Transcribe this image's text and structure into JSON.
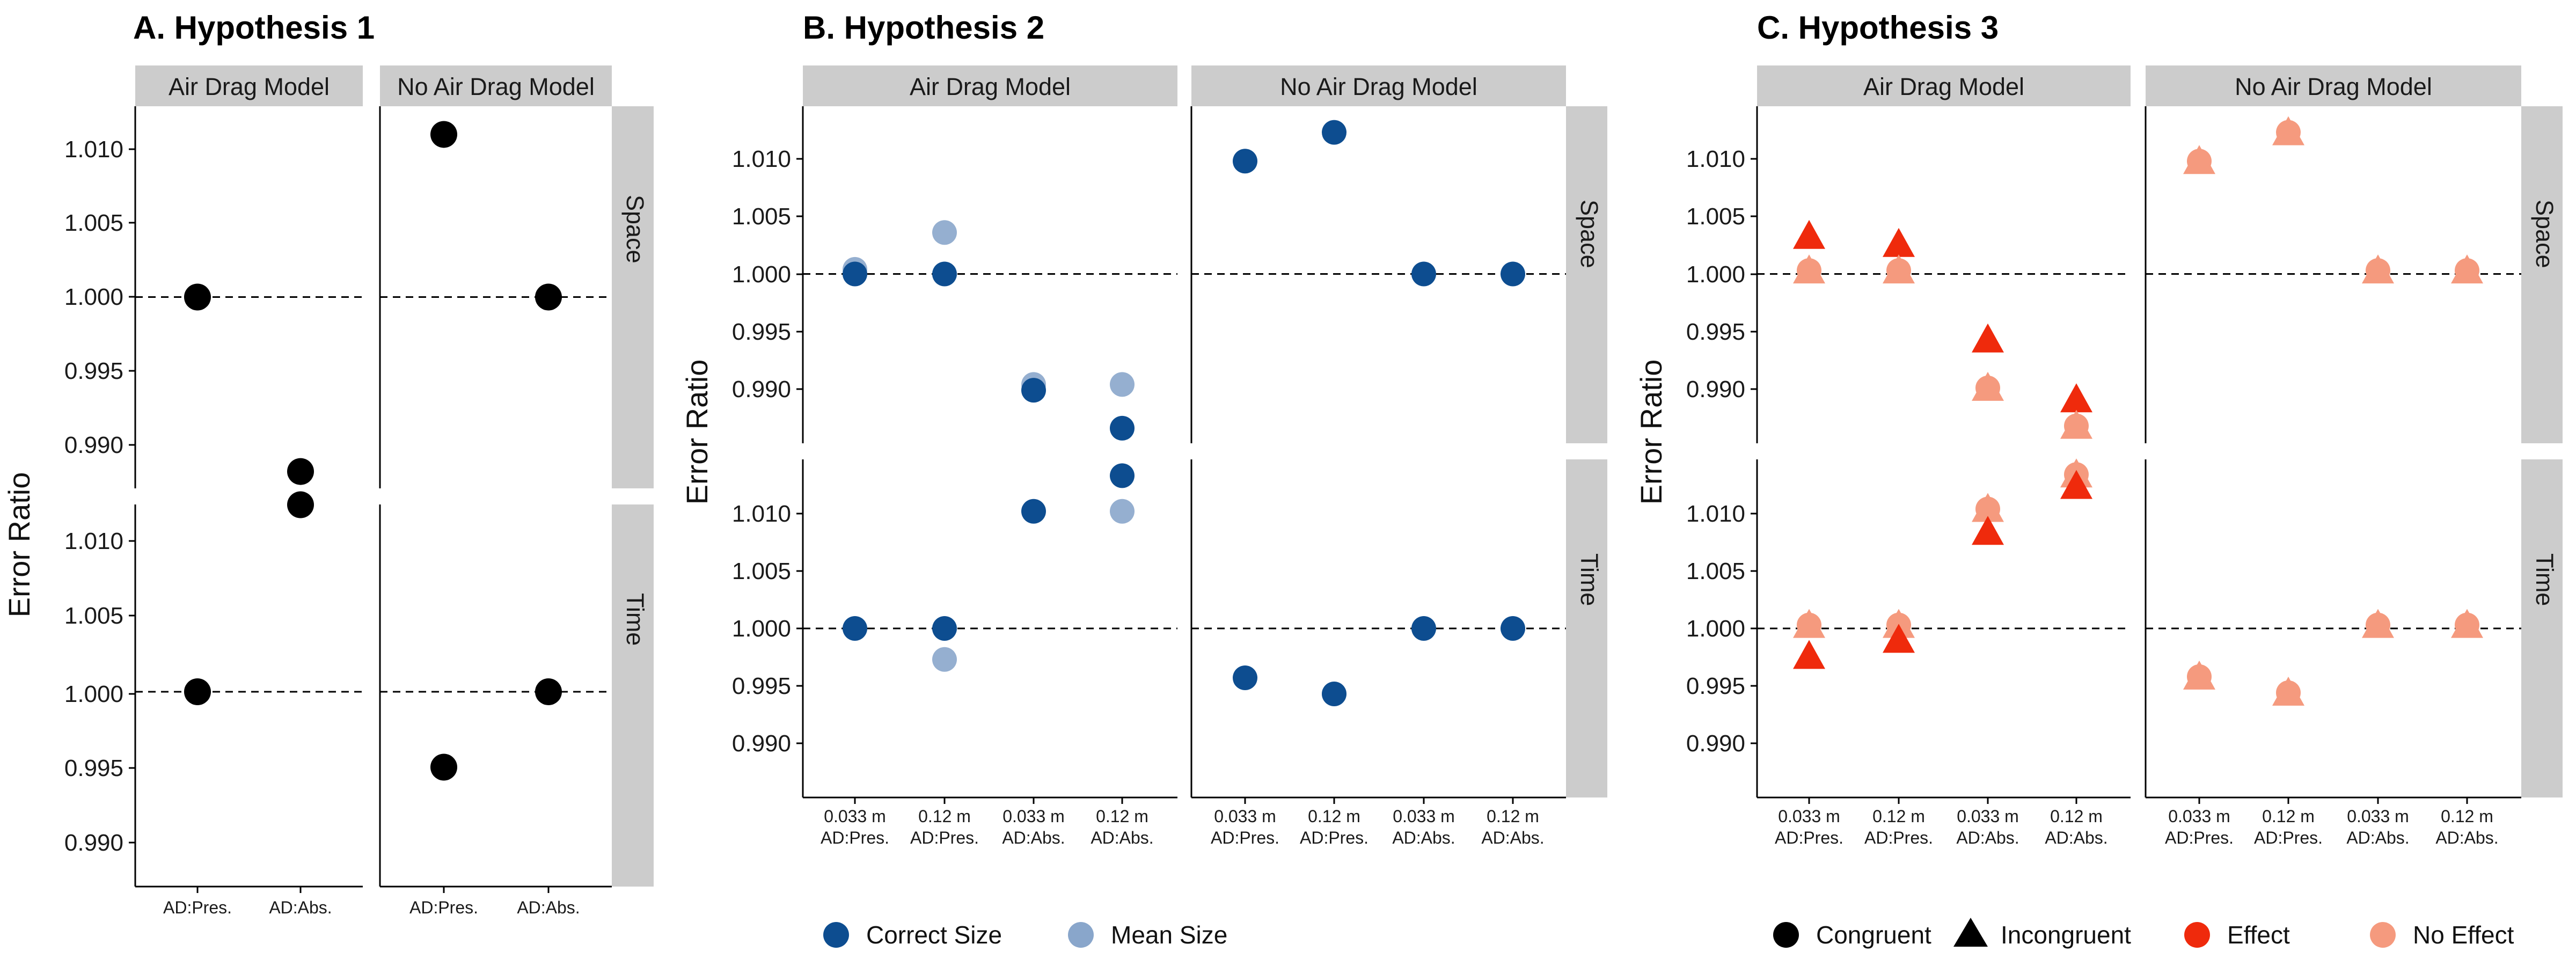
{
  "colors": {
    "black": "#000000",
    "correct_size": "#0d4d90",
    "mean_size": "#89a6cb",
    "effect": "#ef2a0c",
    "no_effect": "#f59a7e",
    "strip": "#cccccc"
  },
  "chart_data": [
    {
      "type": "scatter",
      "title": "A. Hypothesis 1",
      "ylabel": "Error Ratio",
      "columns": [
        "Air Drag Model",
        "No Air Drag Model"
      ],
      "rows": [
        "Space",
        "Time"
      ],
      "x_categories": [
        [
          "AD:Pres.",
          "AD:Abs."
        ],
        [
          "AD:Pres.",
          "AD:Abs."
        ]
      ],
      "yticks": [
        "1.010",
        "1.005",
        "1.000",
        "0.995",
        "0.990"
      ],
      "ylim": [
        0.9865,
        1.0128
      ],
      "reference_line": 1.0,
      "points": [
        {
          "col": 0,
          "row": 0,
          "x": 0,
          "y": 1.0,
          "style": "black"
        },
        {
          "col": 0,
          "row": 0,
          "x": 1,
          "y": 0.9882,
          "style": "black"
        },
        {
          "col": 0,
          "row": 1,
          "x": 1,
          "y": 1.0124,
          "style": "black"
        },
        {
          "col": 0,
          "row": 1,
          "x": 0,
          "y": 1.0,
          "style": "black"
        },
        {
          "col": 1,
          "row": 0,
          "x": 0,
          "y": 1.011,
          "style": "black"
        },
        {
          "col": 1,
          "row": 0,
          "x": 1,
          "y": 1.0,
          "style": "black"
        },
        {
          "col": 1,
          "row": 1,
          "x": 0,
          "y": 0.995,
          "style": "black"
        },
        {
          "col": 1,
          "row": 1,
          "x": 1,
          "y": 1.0,
          "style": "black"
        }
      ]
    },
    {
      "type": "scatter",
      "title": "B. Hypothesis 2",
      "ylabel": "Error Ratio",
      "columns": [
        "Air Drag Model",
        "No Air Drag Model"
      ],
      "rows": [
        "Space",
        "Time"
      ],
      "x_categories": [
        [
          "0.033 m\nAD:Pres.",
          "0.12 m\nAD:Pres.",
          "0.033 m\nAD:Abs.",
          "0.12 m\nAD:Abs."
        ],
        [
          "0.033 m\nAD:Pres.",
          "0.12 m\nAD:Pres.",
          "0.033 m\nAD:Abs.",
          "0.12 m\nAD:Abs."
        ]
      ],
      "yticks": [
        "1.010",
        "1.005",
        "1.000",
        "0.995",
        "0.990"
      ],
      "ylim": [
        0.985,
        1.0143
      ],
      "reference_line": 1.0,
      "legend": [
        {
          "label": "Correct Size",
          "style": "correct_size",
          "shape": "circle"
        },
        {
          "label": "Mean Size",
          "style": "mean_size",
          "shape": "circle"
        }
      ],
      "points": [
        {
          "col": 0,
          "row": 0,
          "x": 0,
          "y": 1.0004,
          "style": "mean_size"
        },
        {
          "col": 0,
          "row": 0,
          "x": 0,
          "y": 1.0,
          "style": "correct_size"
        },
        {
          "col": 0,
          "row": 0,
          "x": 1,
          "y": 1.0036,
          "style": "mean_size"
        },
        {
          "col": 0,
          "row": 0,
          "x": 1,
          "y": 1.0,
          "style": "correct_size"
        },
        {
          "col": 0,
          "row": 0,
          "x": 2,
          "y": 0.9904,
          "style": "mean_size"
        },
        {
          "col": 0,
          "row": 0,
          "x": 2,
          "y": 0.9899,
          "style": "correct_size"
        },
        {
          "col": 0,
          "row": 0,
          "x": 3,
          "y": 0.9904,
          "style": "mean_size"
        },
        {
          "col": 0,
          "row": 0,
          "x": 3,
          "y": 0.9866,
          "style": "correct_size"
        },
        {
          "col": 0,
          "row": 1,
          "x": 3,
          "y": 1.0133,
          "style": "correct_size"
        },
        {
          "col": 0,
          "row": 1,
          "x": 2,
          "y": 1.0102,
          "style": "correct_size"
        },
        {
          "col": 0,
          "row": 1,
          "x": 3,
          "y": 1.0102,
          "style": "mean_size"
        },
        {
          "col": 0,
          "row": 1,
          "x": 0,
          "y": 1.0,
          "style": "correct_size"
        },
        {
          "col": 0,
          "row": 1,
          "x": 1,
          "y": 1.0,
          "style": "correct_size"
        },
        {
          "col": 0,
          "row": 1,
          "x": 1,
          "y": 0.9973,
          "style": "mean_size"
        },
        {
          "col": 1,
          "row": 0,
          "x": 0,
          "y": 1.0098,
          "style": "correct_size"
        },
        {
          "col": 1,
          "row": 0,
          "x": 1,
          "y": 1.0123,
          "style": "correct_size"
        },
        {
          "col": 1,
          "row": 0,
          "x": 2,
          "y": 1.0,
          "style": "correct_size"
        },
        {
          "col": 1,
          "row": 0,
          "x": 3,
          "y": 1.0,
          "style": "correct_size"
        },
        {
          "col": 1,
          "row": 1,
          "x": 2,
          "y": 1.0,
          "style": "correct_size"
        },
        {
          "col": 1,
          "row": 1,
          "x": 3,
          "y": 1.0,
          "style": "correct_size"
        },
        {
          "col": 1,
          "row": 1,
          "x": 0,
          "y": 0.9957,
          "style": "correct_size"
        },
        {
          "col": 1,
          "row": 1,
          "x": 1,
          "y": 0.9943,
          "style": "correct_size"
        }
      ]
    },
    {
      "type": "scatter",
      "title": "C. Hypothesis 3",
      "ylabel": "Error Ratio",
      "columns": [
        "Air Drag Model",
        "No Air Drag Model"
      ],
      "rows": [
        "Space",
        "Time"
      ],
      "x_categories": [
        [
          "0.033 m\nAD:Pres.",
          "0.12 m\nAD:Pres.",
          "0.033 m\nAD:Abs.",
          "0.12 m\nAD:Abs."
        ],
        [
          "0.033 m\nAD:Pres.",
          "0.12 m\nAD:Pres.",
          "0.033 m\nAD:Abs.",
          "0.12 m\nAD:Abs."
        ]
      ],
      "yticks": [
        "1.010",
        "1.005",
        "1.000",
        "0.995",
        "0.990"
      ],
      "ylim": [
        0.985,
        1.0143
      ],
      "reference_line": 1.0,
      "legend": [
        {
          "label": "Congruent",
          "style": "black",
          "shape": "circle"
        },
        {
          "label": "Incongruent",
          "style": "black",
          "shape": "triangle"
        },
        {
          "label": "Effect",
          "style": "effect",
          "shape": "circle"
        },
        {
          "label": "No Effect",
          "style": "no_effect",
          "shape": "circle"
        }
      ],
      "points": [
        {
          "col": 0,
          "row": 0,
          "x": 0,
          "y": 1.0033,
          "style": "effect",
          "shape": "triangle"
        },
        {
          "col": 0,
          "row": 0,
          "x": 0,
          "y": 1.0003,
          "style": "no_effect",
          "shape": "circle"
        },
        {
          "col": 0,
          "row": 0,
          "x": 0,
          "y": 1.0003,
          "style": "no_effect",
          "shape": "triangle"
        },
        {
          "col": 0,
          "row": 0,
          "x": 1,
          "y": 1.0026,
          "style": "effect",
          "shape": "triangle"
        },
        {
          "col": 0,
          "row": 0,
          "x": 1,
          "y": 1.0003,
          "style": "no_effect",
          "shape": "circle"
        },
        {
          "col": 0,
          "row": 0,
          "x": 1,
          "y": 1.0003,
          "style": "no_effect",
          "shape": "triangle"
        },
        {
          "col": 0,
          "row": 0,
          "x": 2,
          "y": 0.9943,
          "style": "effect",
          "shape": "triangle"
        },
        {
          "col": 0,
          "row": 0,
          "x": 2,
          "y": 0.9901,
          "style": "no_effect",
          "shape": "circle"
        },
        {
          "col": 0,
          "row": 0,
          "x": 2,
          "y": 0.9901,
          "style": "no_effect",
          "shape": "triangle"
        },
        {
          "col": 0,
          "row": 0,
          "x": 3,
          "y": 0.9891,
          "style": "effect",
          "shape": "triangle"
        },
        {
          "col": 0,
          "row": 0,
          "x": 3,
          "y": 0.9868,
          "style": "no_effect",
          "shape": "circle"
        },
        {
          "col": 0,
          "row": 0,
          "x": 3,
          "y": 0.9868,
          "style": "no_effect",
          "shape": "triangle"
        },
        {
          "col": 0,
          "row": 1,
          "x": 3,
          "y": 1.0134,
          "style": "no_effect",
          "shape": "circle"
        },
        {
          "col": 0,
          "row": 1,
          "x": 3,
          "y": 1.0134,
          "style": "no_effect",
          "shape": "triangle"
        },
        {
          "col": 0,
          "row": 1,
          "x": 3,
          "y": 1.0124,
          "style": "effect",
          "shape": "triangle"
        },
        {
          "col": 0,
          "row": 1,
          "x": 2,
          "y": 1.0104,
          "style": "no_effect",
          "shape": "circle"
        },
        {
          "col": 0,
          "row": 1,
          "x": 2,
          "y": 1.0104,
          "style": "no_effect",
          "shape": "triangle"
        },
        {
          "col": 0,
          "row": 1,
          "x": 2,
          "y": 1.0084,
          "style": "effect",
          "shape": "triangle"
        },
        {
          "col": 0,
          "row": 1,
          "x": 0,
          "y": 1.0003,
          "style": "no_effect",
          "shape": "circle"
        },
        {
          "col": 0,
          "row": 1,
          "x": 0,
          "y": 1.0003,
          "style": "no_effect",
          "shape": "triangle"
        },
        {
          "col": 0,
          "row": 1,
          "x": 0,
          "y": 0.9976,
          "style": "effect",
          "shape": "triangle"
        },
        {
          "col": 0,
          "row": 1,
          "x": 1,
          "y": 1.0003,
          "style": "no_effect",
          "shape": "circle"
        },
        {
          "col": 0,
          "row": 1,
          "x": 1,
          "y": 1.0003,
          "style": "no_effect",
          "shape": "triangle"
        },
        {
          "col": 0,
          "row": 1,
          "x": 1,
          "y": 0.999,
          "style": "effect",
          "shape": "triangle"
        },
        {
          "col": 1,
          "row": 0,
          "x": 0,
          "y": 1.0098,
          "style": "no_effect",
          "shape": "circle"
        },
        {
          "col": 1,
          "row": 0,
          "x": 0,
          "y": 1.0098,
          "style": "no_effect",
          "shape": "triangle"
        },
        {
          "col": 1,
          "row": 0,
          "x": 1,
          "y": 1.0123,
          "style": "no_effect",
          "shape": "circle"
        },
        {
          "col": 1,
          "row": 0,
          "x": 1,
          "y": 1.0123,
          "style": "no_effect",
          "shape": "triangle"
        },
        {
          "col": 1,
          "row": 0,
          "x": 2,
          "y": 1.0003,
          "style": "no_effect",
          "shape": "circle"
        },
        {
          "col": 1,
          "row": 0,
          "x": 2,
          "y": 1.0003,
          "style": "no_effect",
          "shape": "triangle"
        },
        {
          "col": 1,
          "row": 0,
          "x": 3,
          "y": 1.0003,
          "style": "no_effect",
          "shape": "circle"
        },
        {
          "col": 1,
          "row": 0,
          "x": 3,
          "y": 1.0003,
          "style": "no_effect",
          "shape": "triangle"
        },
        {
          "col": 1,
          "row": 1,
          "x": 2,
          "y": 1.0003,
          "style": "no_effect",
          "shape": "circle"
        },
        {
          "col": 1,
          "row": 1,
          "x": 2,
          "y": 1.0003,
          "style": "no_effect",
          "shape": "triangle"
        },
        {
          "col": 1,
          "row": 1,
          "x": 3,
          "y": 1.0003,
          "style": "no_effect",
          "shape": "circle"
        },
        {
          "col": 1,
          "row": 1,
          "x": 3,
          "y": 1.0003,
          "style": "no_effect",
          "shape": "triangle"
        },
        {
          "col": 1,
          "row": 1,
          "x": 0,
          "y": 0.9958,
          "style": "no_effect",
          "shape": "circle"
        },
        {
          "col": 1,
          "row": 1,
          "x": 0,
          "y": 0.9958,
          "style": "no_effect",
          "shape": "triangle"
        },
        {
          "col": 1,
          "row": 1,
          "x": 1,
          "y": 0.9944,
          "style": "no_effect",
          "shape": "circle"
        },
        {
          "col": 1,
          "row": 1,
          "x": 1,
          "y": 0.9944,
          "style": "no_effect",
          "shape": "triangle"
        }
      ]
    }
  ]
}
